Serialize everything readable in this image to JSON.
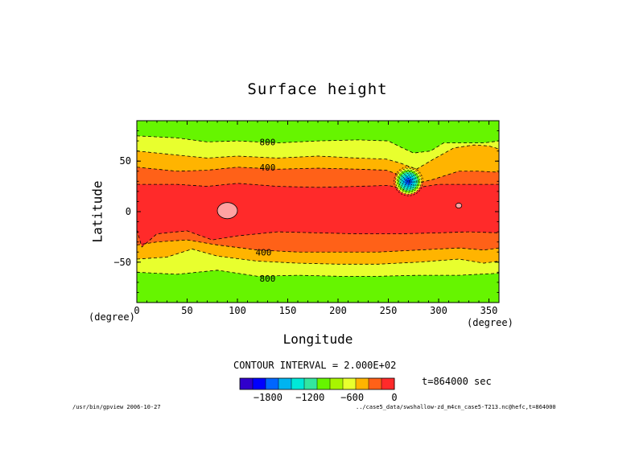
{
  "chart_data": {
    "type": "contour",
    "title": "Surface height",
    "xlabel": "Longitude",
    "ylabel": "Latitude",
    "x_unit": "(degree)",
    "y_unit": "(degree)",
    "xlim": [
      0,
      360
    ],
    "ylim": [
      -90,
      90
    ],
    "x_ticks": [
      0,
      50,
      100,
      150,
      200,
      250,
      300,
      350
    ],
    "y_ticks": [
      50,
      0,
      -50
    ],
    "y_tick_labels": [
      "50",
      "0",
      "−50"
    ],
    "contour_labels": [
      {
        "text": "800",
        "lon": 122,
        "lat": 68
      },
      {
        "text": "400",
        "lon": 122,
        "lat": 43
      },
      {
        "text": "400",
        "lon": 118,
        "lat": -41
      },
      {
        "text": "800",
        "lon": 122,
        "lat": -67
      }
    ],
    "bands": [
      {
        "name": "level-minus-800-to-minus-600",
        "north": [
          [
            0,
            75
          ],
          [
            40,
            73
          ],
          [
            70,
            69
          ],
          [
            100,
            70
          ],
          [
            140,
            68
          ],
          [
            180,
            70
          ],
          [
            220,
            71
          ],
          [
            250,
            70
          ],
          [
            262,
            64
          ],
          [
            275,
            58
          ],
          [
            292,
            60
          ],
          [
            305,
            68
          ],
          [
            325,
            68
          ],
          [
            345,
            68
          ],
          [
            360,
            70
          ]
        ],
        "south": [
          [
            0,
            -60
          ],
          [
            40,
            -62
          ],
          [
            80,
            -58
          ],
          [
            120,
            -64
          ],
          [
            160,
            -63
          ],
          [
            200,
            -64
          ],
          [
            240,
            -64
          ],
          [
            280,
            -63
          ],
          [
            320,
            -63
          ],
          [
            360,
            -61
          ]
        ],
        "color": "#e8ff2e"
      },
      {
        "name": "level-minus-600-to-minus-400",
        "north": [
          [
            0,
            60
          ],
          [
            40,
            56
          ],
          [
            70,
            53
          ],
          [
            100,
            55
          ],
          [
            140,
            53
          ],
          [
            180,
            55
          ],
          [
            220,
            53
          ],
          [
            248,
            52
          ],
          [
            262,
            48
          ],
          [
            278,
            42
          ],
          [
            295,
            52
          ],
          [
            315,
            63
          ],
          [
            335,
            66
          ],
          [
            350,
            65
          ],
          [
            360,
            62
          ]
        ],
        "south": [
          [
            0,
            -47
          ],
          [
            30,
            -45
          ],
          [
            55,
            -37
          ],
          [
            80,
            -44
          ],
          [
            120,
            -49
          ],
          [
            160,
            -51
          ],
          [
            200,
            -52
          ],
          [
            240,
            -52
          ],
          [
            280,
            -50
          ],
          [
            320,
            -47
          ],
          [
            345,
            -51
          ],
          [
            360,
            -49
          ]
        ],
        "color": "#ffb400"
      },
      {
        "name": "level-minus-400-to-minus-200",
        "north": [
          [
            0,
            44
          ],
          [
            40,
            40
          ],
          [
            70,
            41
          ],
          [
            100,
            44
          ],
          [
            140,
            42
          ],
          [
            180,
            43
          ],
          [
            220,
            42
          ],
          [
            248,
            41
          ],
          [
            262,
            36
          ],
          [
            278,
            28
          ],
          [
            295,
            32
          ],
          [
            320,
            40
          ],
          [
            340,
            40
          ],
          [
            360,
            39
          ]
        ],
        "south": [
          [
            0,
            -33
          ],
          [
            20,
            -30
          ],
          [
            50,
            -28
          ],
          [
            80,
            -33
          ],
          [
            120,
            -38
          ],
          [
            160,
            -40
          ],
          [
            200,
            -40
          ],
          [
            240,
            -40
          ],
          [
            280,
            -38
          ],
          [
            320,
            -36
          ],
          [
            345,
            -38
          ],
          [
            360,
            -36
          ]
        ],
        "color": "#ff6118"
      },
      {
        "name": "level-minus-200-to-0",
        "north": [
          [
            0,
            27
          ],
          [
            40,
            27
          ],
          [
            70,
            25
          ],
          [
            100,
            28
          ],
          [
            140,
            25
          ],
          [
            180,
            24
          ],
          [
            220,
            25
          ],
          [
            250,
            26
          ],
          [
            265,
            22
          ],
          [
            280,
            24
          ],
          [
            300,
            27
          ],
          [
            330,
            27
          ],
          [
            360,
            27
          ]
        ],
        "south": [
          [
            0,
            -18
          ],
          [
            5,
            -35
          ],
          [
            20,
            -22
          ],
          [
            50,
            -19
          ],
          [
            75,
            -28
          ],
          [
            100,
            -24
          ],
          [
            140,
            -20
          ],
          [
            180,
            -21
          ],
          [
            220,
            -22
          ],
          [
            260,
            -22
          ],
          [
            300,
            -21
          ],
          [
            330,
            -20
          ],
          [
            360,
            -21
          ]
        ],
        "color": "#ff2a2a"
      }
    ],
    "background_color": "#66f500",
    "features": [
      {
        "type": "high",
        "lon": 90,
        "lat": 1,
        "rx": 10,
        "ry": 8,
        "color": "#ffa2a2"
      },
      {
        "type": "high",
        "lon": 320,
        "lat": 6,
        "rx": 3,
        "ry": 2.5,
        "color": "#ffa2a2"
      },
      {
        "type": "low",
        "lon": 270,
        "lat": 30,
        "radius_deg": 13,
        "ring_colors": [
          "#e8ff2e",
          "#66f500",
          "#33e6a0",
          "#00e8d8",
          "#00b4f0",
          "#0066ff",
          "#0030e0"
        ]
      }
    ],
    "colorbar": {
      "colors": [
        "#3000cc",
        "#0000ff",
        "#0066ff",
        "#00b4f0",
        "#00e8d8",
        "#33e6a0",
        "#66f500",
        "#a8f500",
        "#e8ff2e",
        "#ffb400",
        "#ff6118",
        "#ff2a2a"
      ],
      "tick_labels": [
        {
          "text": "−1800",
          "value": -1800
        },
        {
          "text": "−1200",
          "value": -1200
        },
        {
          "text": "−600",
          "value": -600
        },
        {
          "text": "0",
          "value": 0
        }
      ],
      "range": [
        -2200,
        0
      ]
    },
    "contour_interval_text": "CONTOUR INTERVAL = 2.000E+02",
    "time_text": "t=864000 sec"
  },
  "footer": {
    "left": "/usr/bin/gpview  2006-10-27",
    "right": "../case5_data/swshallow-zd_m4cn_case5-T213.nc@hefc,t=864000"
  }
}
